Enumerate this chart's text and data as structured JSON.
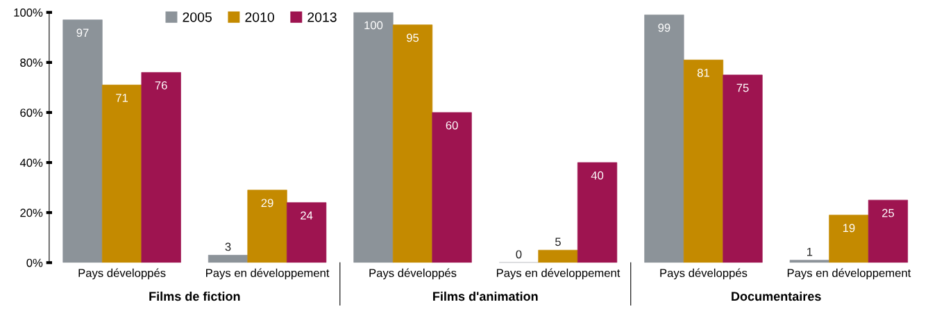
{
  "chart_data": {
    "type": "bar",
    "categories": [
      "Pays développés",
      "Pays en développement",
      "Pays développés",
      "Pays en développement",
      "Pays développés",
      "Pays en développement"
    ],
    "series": [
      {
        "name": "2005",
        "color": "#8c9399",
        "values": [
          97,
          3,
          100,
          0,
          99,
          1
        ]
      },
      {
        "name": "2010",
        "color": "#c48a00",
        "values": [
          71,
          29,
          95,
          5,
          81,
          19
        ]
      },
      {
        "name": "2013",
        "color": "#9e1450",
        "values": [
          76,
          24,
          60,
          40,
          75,
          25
        ]
      }
    ],
    "ylim": [
      0,
      100
    ],
    "yticks": [
      {
        "value": 0,
        "label": "0%"
      },
      {
        "value": 20,
        "label": "20%"
      },
      {
        "value": 40,
        "label": "40%"
      },
      {
        "value": 60,
        "label": "60%"
      },
      {
        "value": 80,
        "label": "80%"
      },
      {
        "value": 100,
        "label": "100%"
      }
    ],
    "data_labels": true,
    "legend": "top",
    "grid": false,
    "annotations": [
      "Films de fiction",
      "Films d'animation",
      "Documentaires"
    ]
  }
}
